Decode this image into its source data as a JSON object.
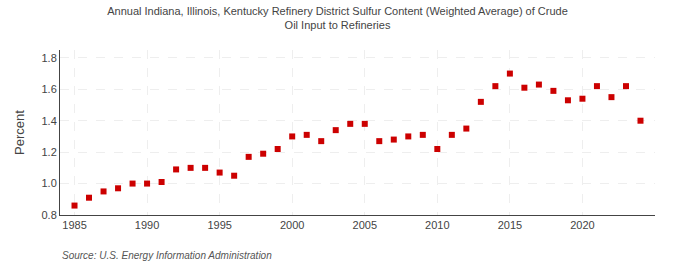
{
  "chart_data": {
    "type": "scatter",
    "title": "Annual Indiana, Illinois, Kentucky Refinery District Sulfur Content (Weighted Average) of Crude\nOil Input to Refineries",
    "ylabel": "Percent",
    "source": "Source: U.S. Energy Information Administration",
    "x": [
      1985,
      1986,
      1987,
      1988,
      1989,
      1990,
      1991,
      1992,
      1993,
      1994,
      1995,
      1996,
      1997,
      1998,
      1999,
      2000,
      2001,
      2002,
      2003,
      2004,
      2005,
      2006,
      2007,
      2008,
      2009,
      2010,
      2011,
      2012,
      2013,
      2014,
      2015,
      2016,
      2017,
      2018,
      2019,
      2020,
      2021,
      2022,
      2023,
      2024
    ],
    "values": [
      0.86,
      0.91,
      0.95,
      0.97,
      1.0,
      1.0,
      1.01,
      1.09,
      1.1,
      1.1,
      1.07,
      1.05,
      1.17,
      1.19,
      1.22,
      1.3,
      1.31,
      1.27,
      1.34,
      1.38,
      1.38,
      1.27,
      1.28,
      1.3,
      1.31,
      1.22,
      1.31,
      1.35,
      1.52,
      1.62,
      1.7,
      1.61,
      1.63,
      1.59,
      1.53,
      1.54,
      1.62,
      1.55,
      1.62,
      1.4
    ],
    "color": "#cc0000",
    "marker": "square",
    "xlim": [
      1984.0,
      2025.0
    ],
    "xticks": [
      1985,
      1990,
      1995,
      2000,
      2005,
      2010,
      2015,
      2020
    ],
    "ylim": [
      0.8,
      1.85
    ],
    "yticks": [
      0.8,
      {
        "value": 1.0,
        "label": "1.0"
      },
      1.2,
      1.4,
      1.6,
      1.8
    ],
    "grid": true
  }
}
